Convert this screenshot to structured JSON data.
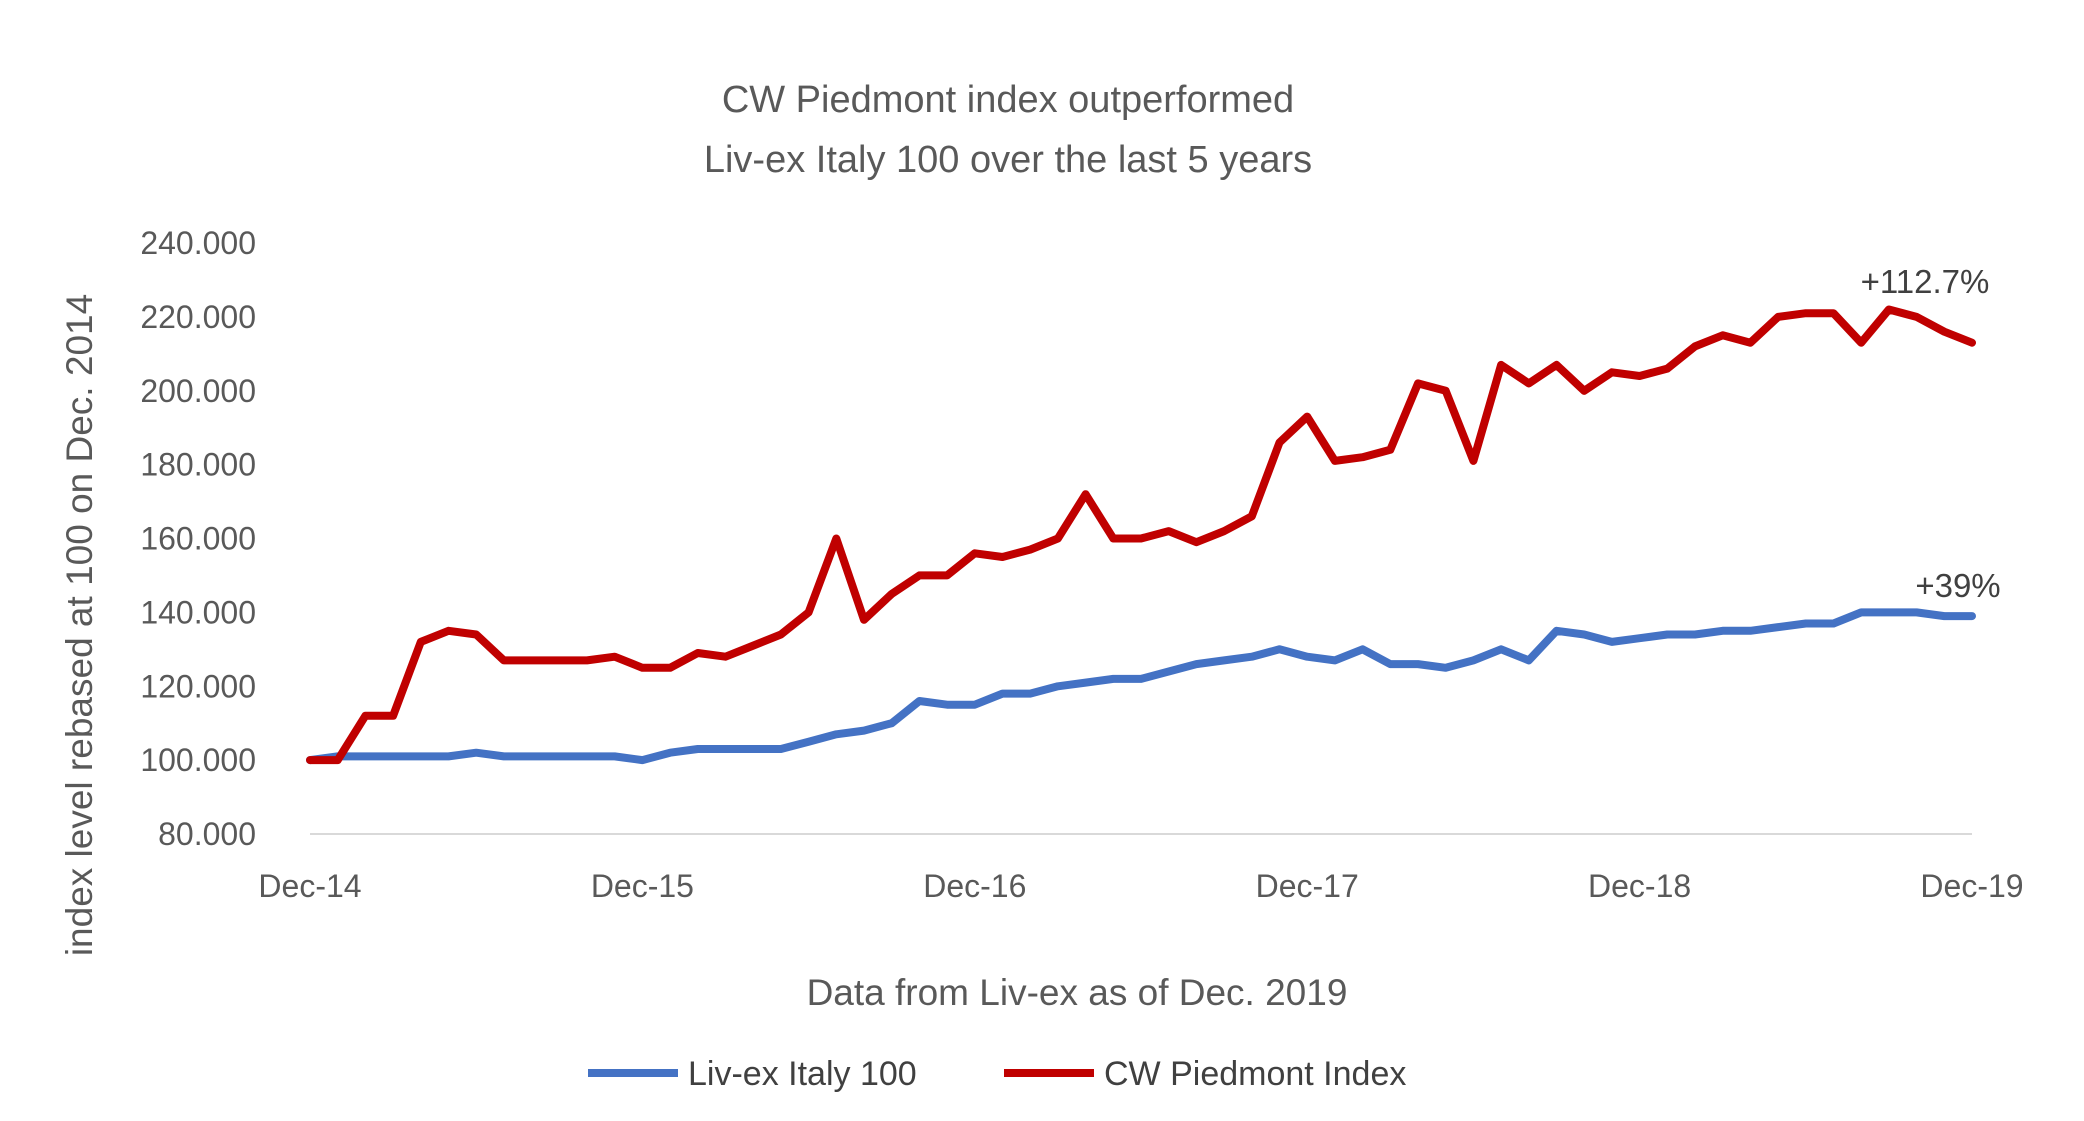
{
  "chart_data": {
    "type": "line",
    "title_lines": [
      "CW Piedmont index outperformed",
      "Liv-ex Italy 100 over the last 5 years"
    ],
    "xlabel": "Data from Liv-ex as of Dec. 2019",
    "ylabel": "index level rebased at 100 on Dec. 2014",
    "ylim": [
      80,
      240
    ],
    "yticks": [
      "80.000",
      "100.000",
      "120.000",
      "140.000",
      "160.000",
      "180.000",
      "200.000",
      "220.000",
      "240.000"
    ],
    "xlim": [
      "2014-12",
      "2019-12"
    ],
    "xticks": [
      "Dec-14",
      "Dec-15",
      "Dec-16",
      "Dec-17",
      "Dec-18",
      "Dec-19"
    ],
    "grid": false,
    "legend_position": "bottom",
    "x": [
      "2014-12",
      "2015-01",
      "2015-02",
      "2015-03",
      "2015-04",
      "2015-05",
      "2015-06",
      "2015-07",
      "2015-08",
      "2015-09",
      "2015-10",
      "2015-11",
      "2015-12",
      "2016-01",
      "2016-02",
      "2016-03",
      "2016-04",
      "2016-05",
      "2016-06",
      "2016-07",
      "2016-08",
      "2016-09",
      "2016-10",
      "2016-11",
      "2016-12",
      "2017-01",
      "2017-02",
      "2017-03",
      "2017-04",
      "2017-05",
      "2017-06",
      "2017-07",
      "2017-08",
      "2017-09",
      "2017-10",
      "2017-11",
      "2017-12",
      "2018-01",
      "2018-02",
      "2018-03",
      "2018-04",
      "2018-05",
      "2018-06",
      "2018-07",
      "2018-08",
      "2018-09",
      "2018-10",
      "2018-11",
      "2018-12",
      "2019-01",
      "2019-02",
      "2019-03",
      "2019-04",
      "2019-05",
      "2019-06",
      "2019-07",
      "2019-08",
      "2019-09",
      "2019-10",
      "2019-11",
      "2019-12"
    ],
    "series": [
      {
        "name": "Liv-ex Italy 100",
        "color": "#4472C4",
        "values": [
          100,
          101,
          101,
          101,
          101,
          101,
          102,
          101,
          101,
          101,
          101,
          101,
          100,
          102,
          103,
          103,
          103,
          103,
          105,
          107,
          108,
          110,
          116,
          115,
          115,
          118,
          118,
          120,
          121,
          122,
          122,
          124,
          126,
          127,
          128,
          130,
          128,
          127,
          130,
          126,
          126,
          125,
          127,
          130,
          127,
          135,
          134,
          132,
          133,
          134,
          134,
          135,
          135,
          136,
          137,
          137,
          140,
          140,
          140,
          139,
          139
        ]
      },
      {
        "name": "CW Piedmont Index",
        "color": "#C00000",
        "values": [
          100,
          100,
          112,
          112,
          132,
          135,
          134,
          127,
          127,
          127,
          127,
          128,
          125,
          125,
          129,
          128,
          131,
          134,
          140,
          160,
          138,
          145,
          150,
          150,
          156,
          155,
          157,
          160,
          172,
          160,
          160,
          162,
          159,
          162,
          166,
          186,
          193,
          181,
          182,
          184,
          202,
          200,
          181,
          207,
          202,
          207,
          200,
          205,
          204,
          206,
          212,
          215,
          213,
          220,
          221,
          221,
          213,
          222,
          220,
          216,
          213
        ]
      }
    ],
    "annotations": [
      {
        "text": "+112.7%",
        "series": "CW Piedmont Index"
      },
      {
        "text": "+39%",
        "series": "Liv-ex Italy 100"
      }
    ]
  }
}
